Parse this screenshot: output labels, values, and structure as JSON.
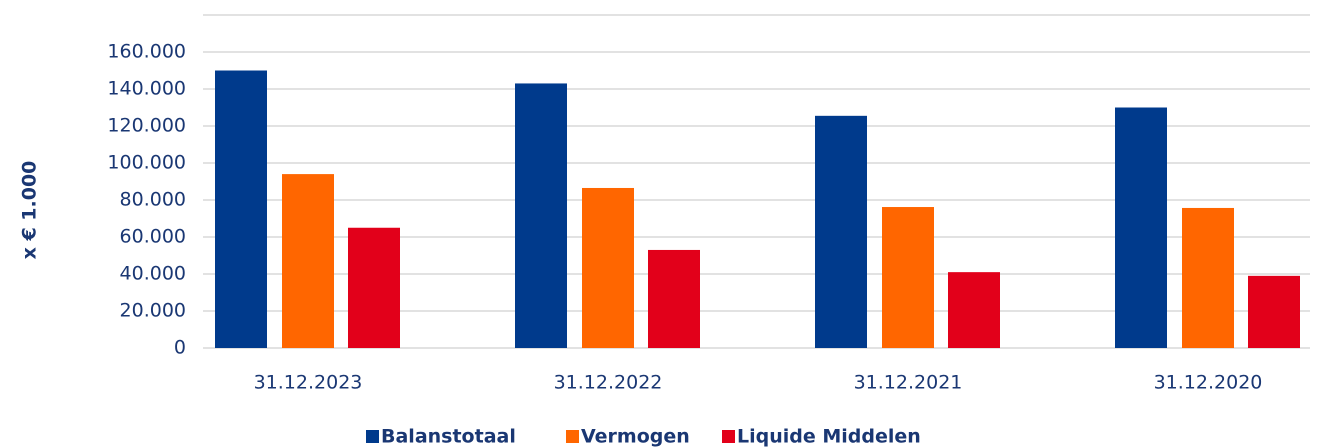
{
  "chart_data": {
    "type": "bar",
    "y_label": "x € 1.000",
    "categories": [
      "31.12.2023",
      "31.12.2022",
      "31.12.2021",
      "31.12.2020"
    ],
    "series": [
      {
        "name": "Balanstotaal",
        "color": "#003a8c",
        "values": [
          150000,
          143000,
          125500,
          130000
        ]
      },
      {
        "name": "Vermogen",
        "color": "#ff6600",
        "values": [
          94000,
          86500,
          76200,
          75700
        ]
      },
      {
        "name": "Liquide Middelen",
        "color": "#e2001a",
        "values": [
          65000,
          53000,
          41000,
          39000
        ]
      }
    ],
    "ylim": [
      0,
      180000
    ],
    "yticks": [
      0,
      {
        "value": 20000,
        "label": "20.000"
      },
      {
        "value": 40000,
        "label": "40.000"
      },
      {
        "value": 60000,
        "label": "60.000"
      },
      {
        "value": 80000,
        "label": "80.000"
      },
      {
        "value": 100000,
        "label": "100.000"
      },
      {
        "value": 120000,
        "label": "120.000"
      },
      {
        "value": 140000,
        "label": "140.000"
      },
      {
        "value": 160000,
        "label": "160.000"
      }
    ],
    "grid": true,
    "legend": "bottom"
  }
}
